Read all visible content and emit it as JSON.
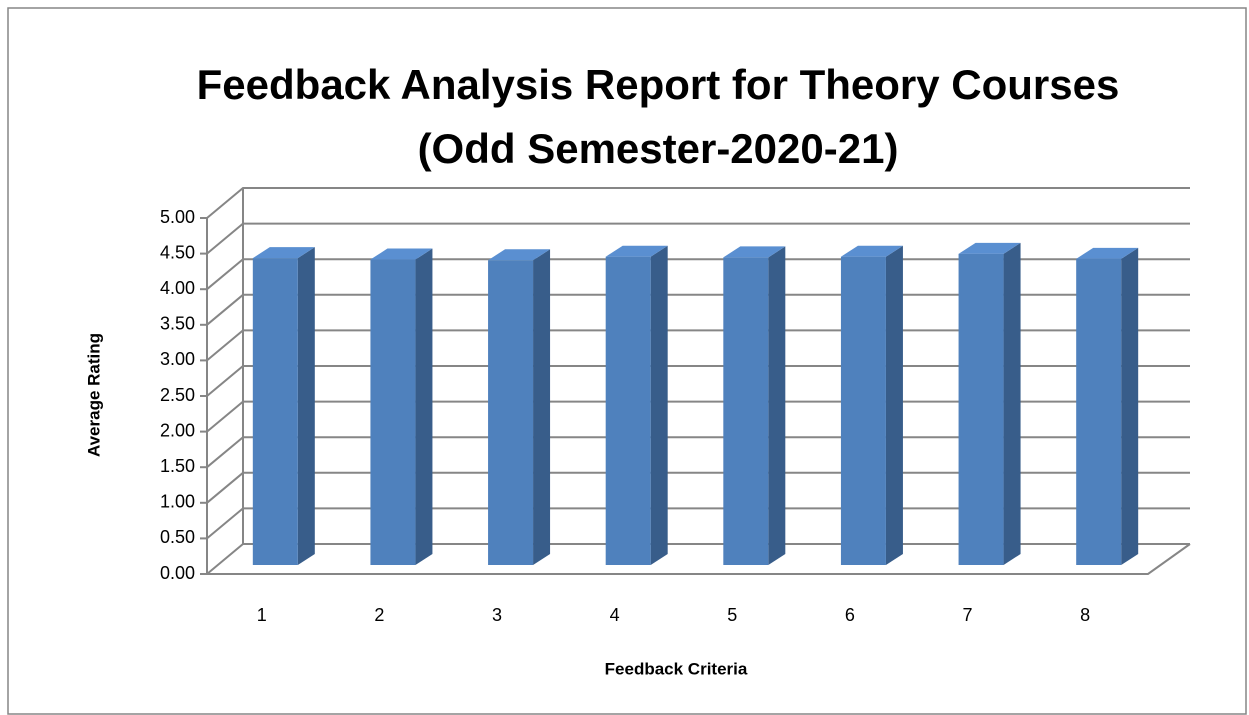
{
  "chart_data": {
    "type": "bar3d",
    "title": "Feedback Analysis Report for Theory Courses",
    "subtitle": "(Odd Semester-2020-21)",
    "y_label": "Average Rating",
    "x_label": "Feedback Criteria",
    "categories": [
      "1",
      "2",
      "3",
      "4",
      "5",
      "6",
      "7",
      "8"
    ],
    "values": [
      4.31,
      4.29,
      4.28,
      4.33,
      4.32,
      4.33,
      4.37,
      4.3
    ],
    "color": "#4f81bd",
    "ylim": [
      0,
      5
    ],
    "yticks": [
      {
        "value": 0,
        "label": "0.00"
      },
      {
        "value": 0.5,
        "label": "0.50"
      },
      {
        "value": 1,
        "label": "1.00"
      },
      {
        "value": 1.5,
        "label": "1.50"
      },
      {
        "value": 2,
        "label": "2.00"
      },
      {
        "value": 2.5,
        "label": "2.50"
      },
      {
        "value": 3,
        "label": "3.00"
      },
      {
        "value": 3.5,
        "label": "3.50"
      },
      {
        "value": 4,
        "label": "4.00"
      },
      {
        "value": 4.5,
        "label": "4.50"
      },
      {
        "value": 5,
        "label": "5.00"
      }
    ],
    "grid": true
  }
}
